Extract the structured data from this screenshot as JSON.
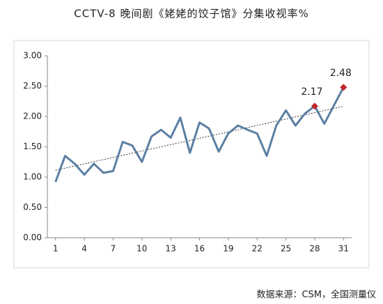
{
  "chart_data": {
    "type": "line",
    "title": "CCTV-8 晚间剧《姥姥的饺子馆》分集收视率%",
    "source": "数据来源：CSM，全国测量仪",
    "x": [
      1,
      2,
      3,
      4,
      5,
      6,
      7,
      8,
      9,
      10,
      11,
      12,
      13,
      14,
      15,
      16,
      17,
      18,
      19,
      20,
      21,
      22,
      23,
      24,
      25,
      26,
      27,
      28,
      29,
      30,
      31
    ],
    "series": [
      {
        "name": "收视率",
        "color": "#5b7fa3",
        "values": [
          0.92,
          1.35,
          1.22,
          1.04,
          1.22,
          1.07,
          1.1,
          1.58,
          1.52,
          1.25,
          1.67,
          1.78,
          1.65,
          1.98,
          1.4,
          1.9,
          1.8,
          1.42,
          1.72,
          1.85,
          1.78,
          1.72,
          1.35,
          1.85,
          2.1,
          1.85,
          2.05,
          2.17,
          1.88,
          2.18,
          2.48
        ]
      }
    ],
    "highlight_points": [
      28,
      31
    ],
    "highlight_color": "#c0272d",
    "trendline": true,
    "xlim": [
      0.15,
      31.85
    ],
    "xticks": [
      1,
      4,
      7,
      10,
      13,
      16,
      19,
      22,
      25,
      28,
      31
    ],
    "ylim": [
      0,
      3
    ],
    "yticks": [
      {
        "value": 0,
        "label": "0.00"
      },
      {
        "value": 0.5,
        "label": "0.50"
      },
      {
        "value": 1,
        "label": "1.00"
      },
      {
        "value": 1.5,
        "label": "1.50"
      },
      {
        "value": 2,
        "label": "2.00"
      },
      {
        "value": 2.5,
        "label": "2.50"
      },
      {
        "value": 3,
        "label": "3.00"
      }
    ],
    "grid": false
  }
}
